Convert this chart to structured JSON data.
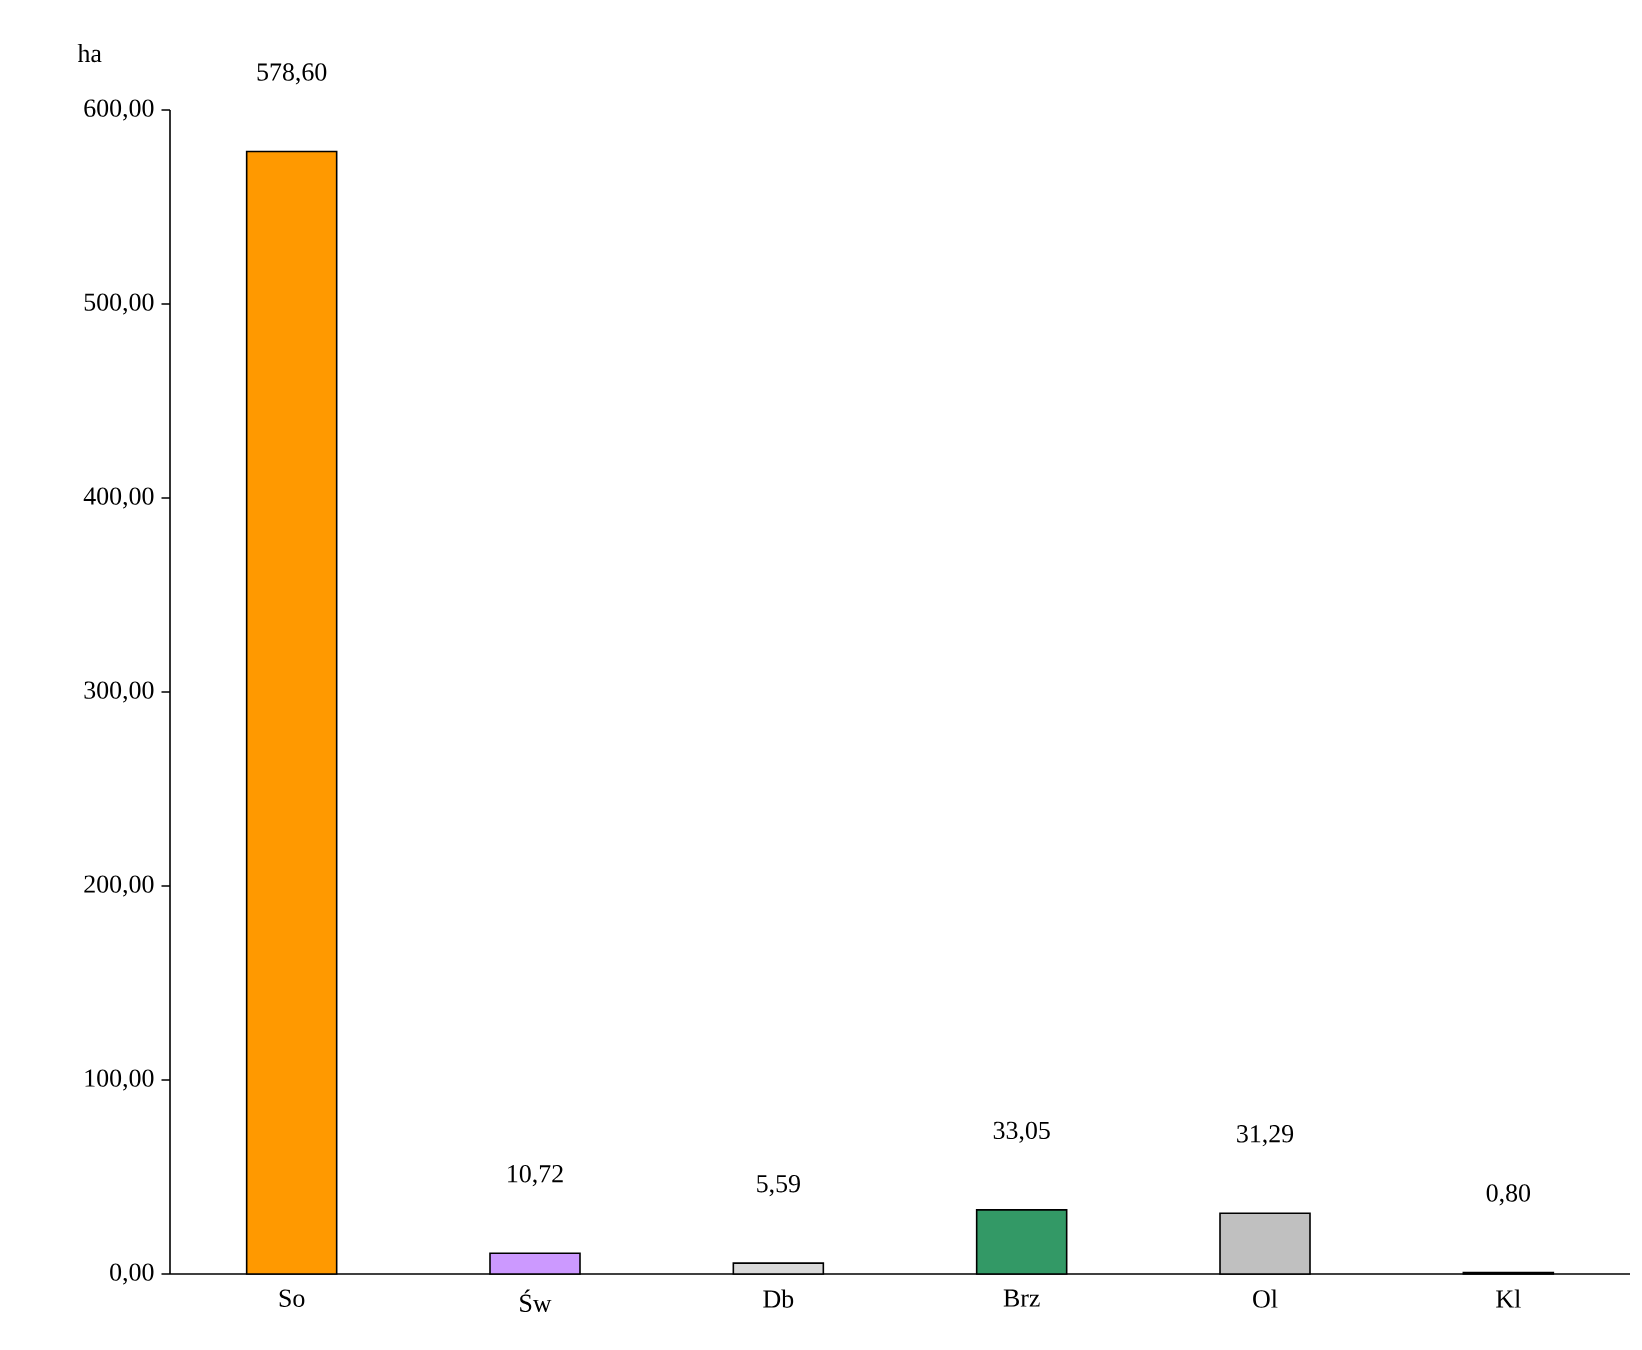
{
  "chart_data": {
    "type": "bar",
    "ylabel": "ha",
    "categories": [
      "So",
      "Św",
      "Db",
      "Brz",
      "Ol",
      "Kl"
    ],
    "values": [
      578.6,
      10.72,
      5.59,
      33.05,
      31.29,
      0.8
    ],
    "value_labels": [
      "578,60",
      "10,72",
      "5,59",
      "33,05",
      "31,29",
      "0,80"
    ],
    "colors": [
      "#ff9900",
      "#cc99ff",
      "#d9d9d9",
      "#339966",
      "#c0c0c0",
      "#33cccc"
    ],
    "ylim": [
      0,
      600
    ],
    "yticks": [
      {
        "value": 0,
        "label": "0,00"
      },
      {
        "value": 100,
        "label": "100,00"
      },
      {
        "value": 200,
        "label": "200,00"
      },
      {
        "value": 300,
        "label": "300,00"
      },
      {
        "value": 400,
        "label": "400,00"
      },
      {
        "value": 500,
        "label": "500,00"
      },
      {
        "value": 600,
        "label": "600,00"
      }
    ]
  }
}
